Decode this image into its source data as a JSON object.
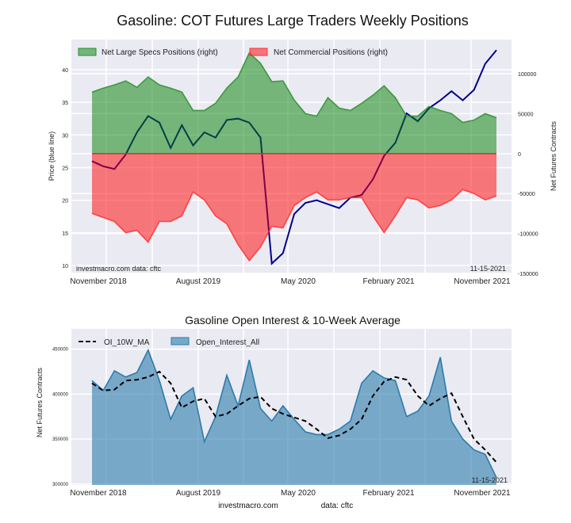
{
  "chart_data": [
    {
      "type": "area",
      "title": "Gasoline: COT Futures Large Traders Weekly Positions",
      "ylabel": "Price (blue line)",
      "ylabel_right": "Net Futures Contracts",
      "x_tick_labels": [
        "November 2018",
        "August 2019",
        "May 2020",
        "February 2021",
        "November 2021"
      ],
      "y_ticks_left": [
        10,
        15,
        20,
        25,
        30,
        35,
        40
      ],
      "y_ticks_right": [
        100000,
        50000,
        0,
        -50000,
        -100000,
        -150000
      ],
      "ylim_left": [
        8.8,
        44.6
      ],
      "ylim_right": [
        -150000,
        142700
      ],
      "grid": true,
      "legend_placement": "top-left",
      "legend": [
        "Net Large Specs Positions (right)",
        "Net Commercial Positions (right)"
      ],
      "annotations": {
        "source": "investmacro.com   data: cftc",
        "date": "11-15-2021"
      },
      "x_range": [
        "2018-10",
        "2021-11-15"
      ],
      "series": [
        {
          "name": "Net Large Specs Positions (right)",
          "axis": "right",
          "color": "#008000",
          "values": [
            77000,
            82000,
            86000,
            91000,
            83000,
            96000,
            86000,
            82000,
            77000,
            54000,
            54000,
            63000,
            82000,
            96000,
            126000,
            113000,
            90000,
            91000,
            67000,
            50000,
            47000,
            70000,
            57000,
            54000,
            63000,
            73000,
            85000,
            70000,
            47000,
            47000,
            59000,
            54000,
            50000,
            39000,
            42000,
            50000,
            45000
          ]
        },
        {
          "name": "Net Commercial Positions (right)",
          "axis": "right",
          "color": "#ff0000",
          "values": [
            -75000,
            -80000,
            -85000,
            -99000,
            -96000,
            -111000,
            -85000,
            -85000,
            -78000,
            -48000,
            -58000,
            -78000,
            -88000,
            -114000,
            -134000,
            -117000,
            -91000,
            -93000,
            -65000,
            -55000,
            -48000,
            -58000,
            -58000,
            -55000,
            -55000,
            -78000,
            -99000,
            -78000,
            -55000,
            -58000,
            -68000,
            -65000,
            -58000,
            -45000,
            -50000,
            -58000,
            -53000
          ]
        },
        {
          "name": "Price",
          "axis": "left",
          "color": "#00008b",
          "values": [
            26.0,
            25.2,
            24.8,
            27.0,
            30.4,
            32.9,
            31.9,
            28.0,
            31.5,
            28.4,
            30.4,
            29.6,
            32.3,
            32.5,
            31.9,
            29.6,
            10.3,
            11.9,
            17.9,
            19.6,
            20.0,
            19.4,
            18.8,
            20.4,
            20.8,
            23.2,
            26.8,
            28.8,
            33.3,
            32.1,
            34.1,
            35.3,
            36.7,
            35.3,
            36.9,
            40.9,
            43.0
          ]
        }
      ]
    },
    {
      "type": "area",
      "title": "Gasoline Open Interest & 10-Week Average",
      "ylabel": "Net Futures Contracts",
      "x_tick_labels": [
        "November 2018",
        "August 2019",
        "May 2020",
        "February 2021",
        "November 2021"
      ],
      "y_ticks": [
        300000,
        350000,
        400000,
        450000
      ],
      "ylim": [
        298900,
        472600
      ],
      "grid": true,
      "legend_placement": "top-left",
      "legend": [
        "OI_10W_MA",
        "Open_Interest_All"
      ],
      "annotations": {
        "date": "11-15-2021",
        "footer_left": "investmacro.com",
        "footer_right": "data: cftc"
      },
      "series": [
        {
          "name": "Open_Interest_All",
          "color": "#2b7bab",
          "values": [
            415000,
            404000,
            426000,
            419000,
            424000,
            449000,
            415000,
            372000,
            398000,
            407000,
            347000,
            375000,
            421000,
            387000,
            438000,
            384000,
            370000,
            387000,
            372000,
            358000,
            355000,
            355000,
            361000,
            370000,
            412000,
            426000,
            418000,
            415000,
            375000,
            381000,
            398000,
            441000,
            370000,
            350000,
            338000,
            333000,
            307000
          ]
        },
        {
          "name": "OI_10W_MA",
          "color": "#000000",
          "values": [
            412000,
            404000,
            405000,
            415000,
            416000,
            419000,
            425000,
            412000,
            385000,
            392000,
            395000,
            375000,
            378000,
            387000,
            395000,
            397000,
            384000,
            378000,
            374000,
            370000,
            361000,
            351000,
            354000,
            361000,
            372000,
            398000,
            414000,
            419000,
            416000,
            398000,
            387000,
            395000,
            401000,
            375000,
            350000,
            338000,
            324000
          ]
        }
      ]
    }
  ]
}
